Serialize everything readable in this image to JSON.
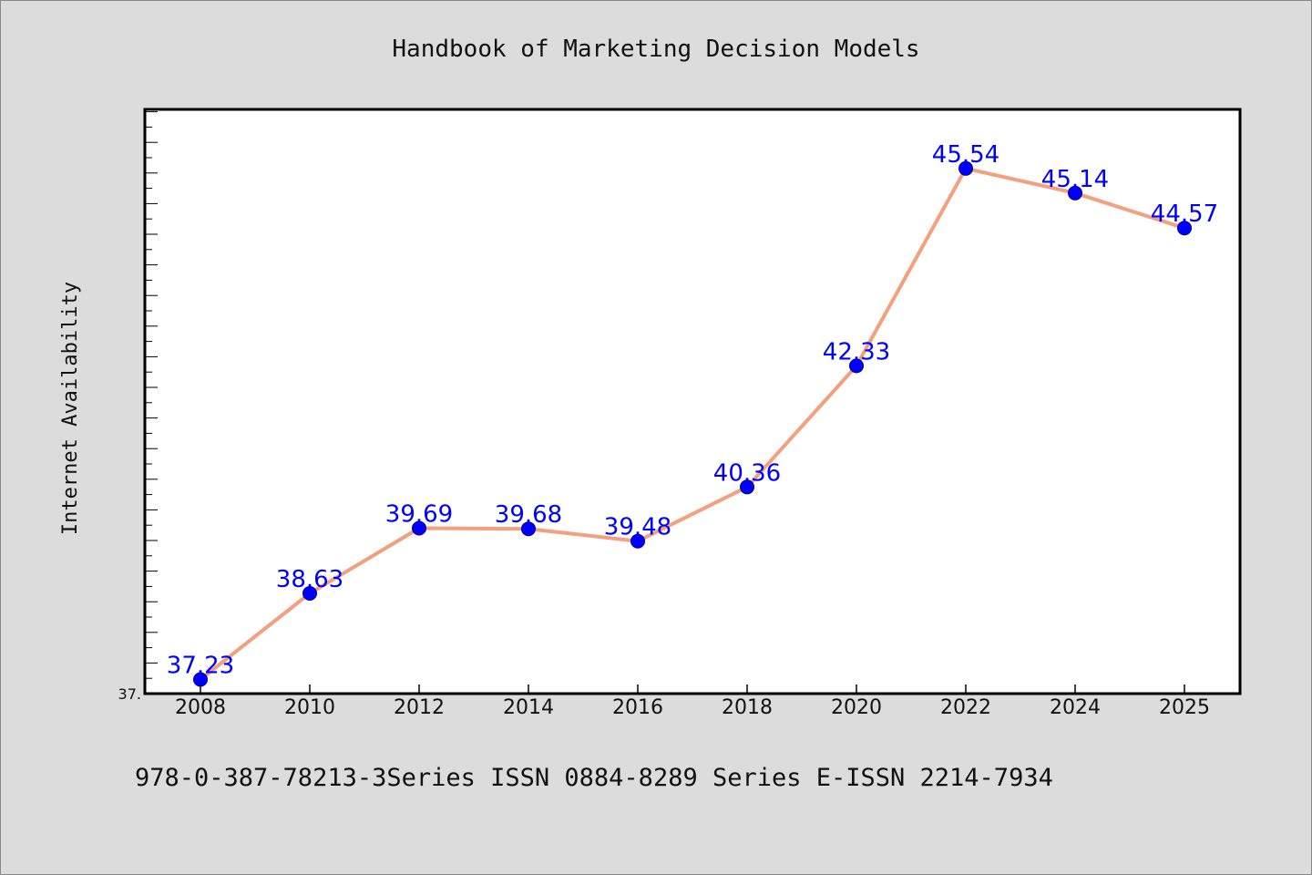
{
  "chart_data": {
    "type": "line",
    "title": "Handbook of Marketing Decision Models",
    "ylabel": "Internet Availability",
    "xlabel": "",
    "categories": [
      "2008",
      "2010",
      "2012",
      "2014",
      "2016",
      "2018",
      "2020",
      "2022",
      "2024",
      "2025"
    ],
    "series": [
      {
        "values": [
          37.23,
          38.63,
          39.69,
          39.68,
          39.48,
          40.36,
          42.33,
          45.54,
          45.14,
          44.57
        ],
        "labels": [
          "37.23",
          "38.63",
          "39.69",
          "39.68",
          "39.48",
          "40.36",
          "42.33",
          "45.54",
          "45.14",
          "44.57"
        ]
      }
    ],
    "ylim": [
      37.0,
      46.5
    ],
    "ytick_label": "37.",
    "grid": false,
    "legend": "none",
    "colors": {
      "line": "#f4a07e",
      "marker": "#0000ff",
      "label": "#0000ff",
      "plot_background": "#ffffff",
      "page_background": "#dcdcdc"
    }
  },
  "footer": {
    "text": "978-0-387-78213-3Series ISSN 0884-8289 Series E-ISSN 2214-7934"
  }
}
